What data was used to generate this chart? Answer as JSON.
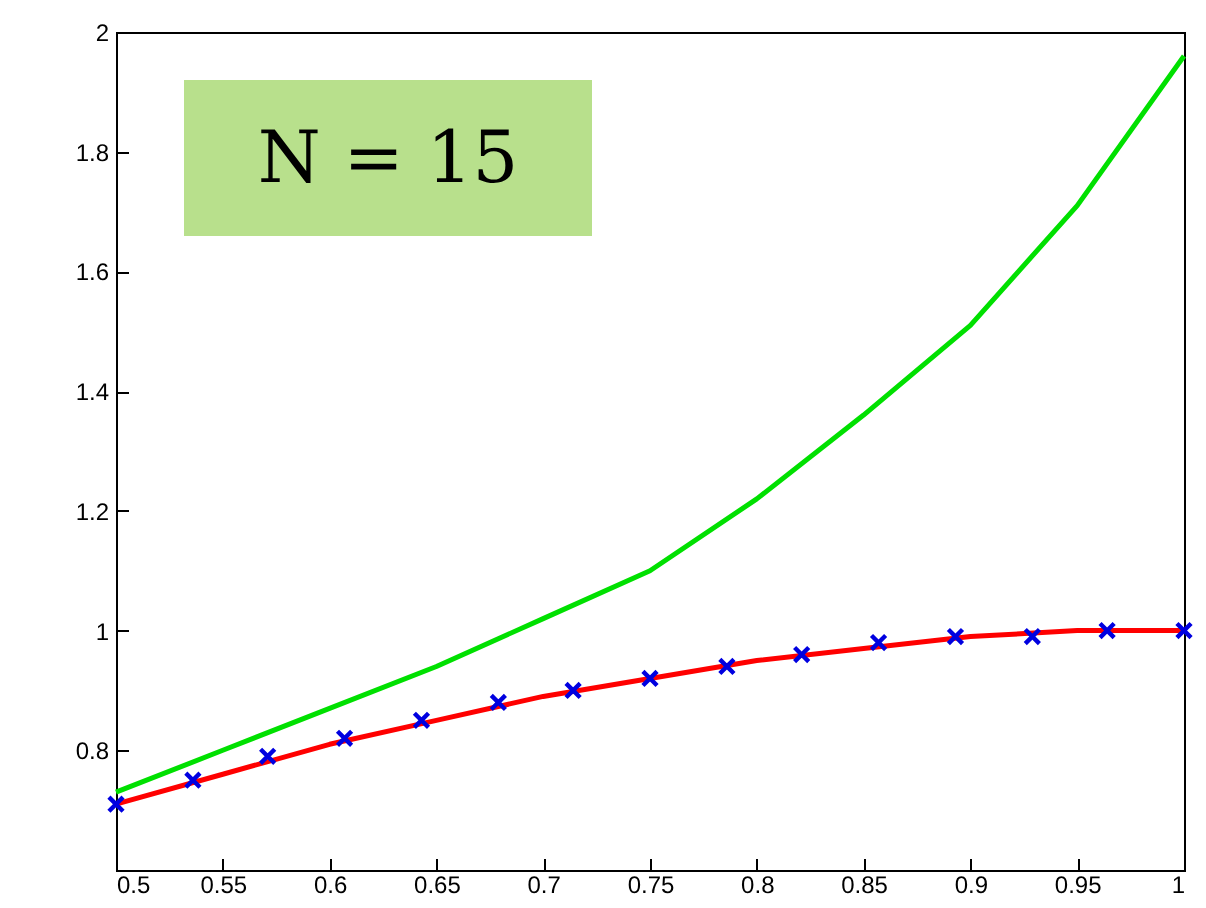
{
  "chart_data": {
    "type": "line",
    "annotations": [
      "N = 15"
    ],
    "xlim": [
      0.5,
      1
    ],
    "ylim": [
      0.6,
      2
    ],
    "xticks": [
      0.5,
      0.55,
      0.6,
      0.65,
      0.7,
      0.75,
      0.8,
      0.85,
      0.9,
      0.95,
      1
    ],
    "yticks": [
      0.8,
      1,
      1.2,
      1.4,
      1.6,
      1.8,
      2
    ],
    "grid": false,
    "series": [
      {
        "color": "#00e000",
        "x": [
          0.5,
          0.55,
          0.6,
          0.65,
          0.7,
          0.75,
          0.8,
          0.85,
          0.9,
          0.95,
          1
        ],
        "values": [
          0.73,
          0.8,
          0.87,
          0.94,
          1.02,
          1.1,
          1.22,
          1.36,
          1.51,
          1.71,
          1.96
        ]
      },
      {
        "color": "#ff0000",
        "x": [
          0.5,
          0.55,
          0.6,
          0.65,
          0.7,
          0.75,
          0.8,
          0.85,
          0.9,
          0.95,
          1
        ],
        "values": [
          0.71,
          0.76,
          0.81,
          0.85,
          0.89,
          0.92,
          0.95,
          0.97,
          0.99,
          1.0,
          1.0
        ]
      },
      {
        "type": "scatter",
        "color": "#0000e0",
        "marker": "cross",
        "x": [
          0.5,
          0.536,
          0.571,
          0.607,
          0.643,
          0.679,
          0.714,
          0.75,
          0.786,
          0.821,
          0.857,
          0.893,
          0.929,
          0.964,
          1
        ],
        "values": [
          0.71,
          0.75,
          0.79,
          0.82,
          0.85,
          0.88,
          0.9,
          0.92,
          0.94,
          0.96,
          0.98,
          0.99,
          0.99,
          1.0,
          1.0
        ]
      }
    ]
  }
}
